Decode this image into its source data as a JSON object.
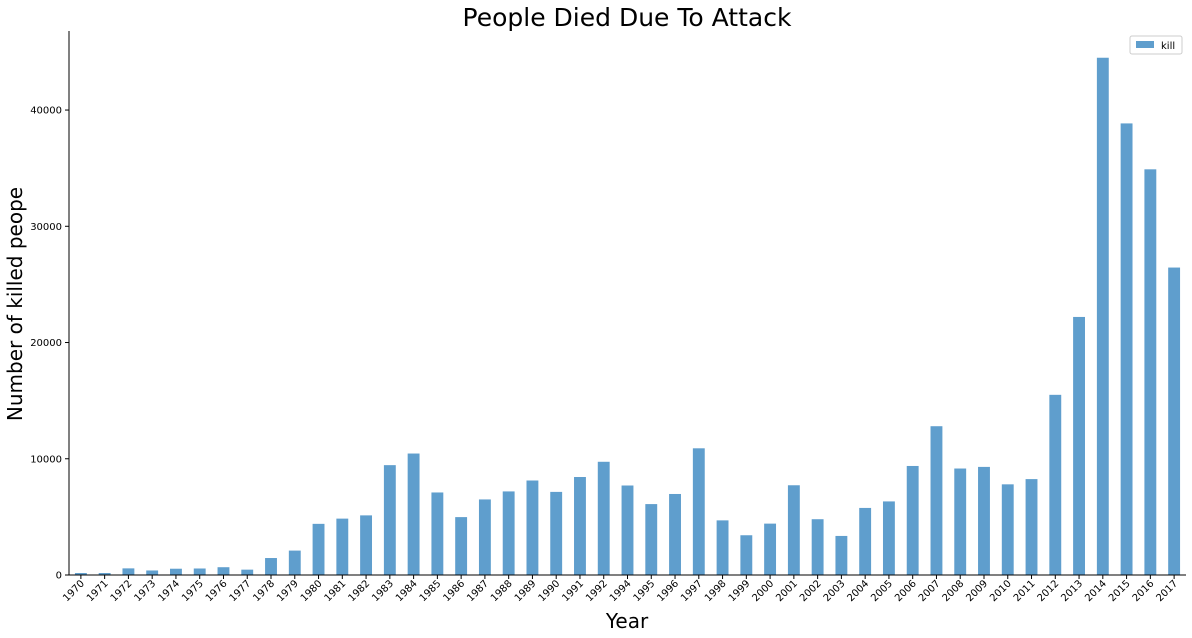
{
  "chart_data": {
    "type": "bar",
    "title": "People Died Due To Attack",
    "xlabel": "Year",
    "ylabel": "Number of killed peope",
    "categories": [
      "1970",
      "1971",
      "1972",
      "1973",
      "1974",
      "1975",
      "1976",
      "1977",
      "1978",
      "1979",
      "1980",
      "1981",
      "1982",
      "1983",
      "1984",
      "1985",
      "1986",
      "1987",
      "1988",
      "1989",
      "1990",
      "1991",
      "1992",
      "1994",
      "1995",
      "1996",
      "1997",
      "1998",
      "1999",
      "2000",
      "2001",
      "2002",
      "2003",
      "2004",
      "2005",
      "2006",
      "2007",
      "2008",
      "2009",
      "2010",
      "2011",
      "2012",
      "2013",
      "2014",
      "2015",
      "2016",
      "2017"
    ],
    "series": [
      {
        "name": "kill",
        "color": "#5f9ecd",
        "values": [
          170,
          170,
          570,
          390,
          540,
          560,
          670,
          460,
          1460,
          2100,
          4400,
          4850,
          5130,
          9450,
          10450,
          7100,
          4980,
          6500,
          7190,
          8130,
          7150,
          8430,
          9740,
          7700,
          6100,
          6970,
          10900,
          4700,
          3420,
          4420,
          7720,
          4800,
          3360,
          5770,
          6330,
          9380,
          12800,
          9160,
          9300,
          7800,
          8250,
          15500,
          22200,
          44500,
          38850,
          34900,
          26450
        ]
      }
    ],
    "ylim": [
      0,
      46800
    ],
    "yticks": [
      0,
      10000,
      20000,
      30000,
      40000
    ],
    "legend_position": "top-right",
    "grid": false
  }
}
